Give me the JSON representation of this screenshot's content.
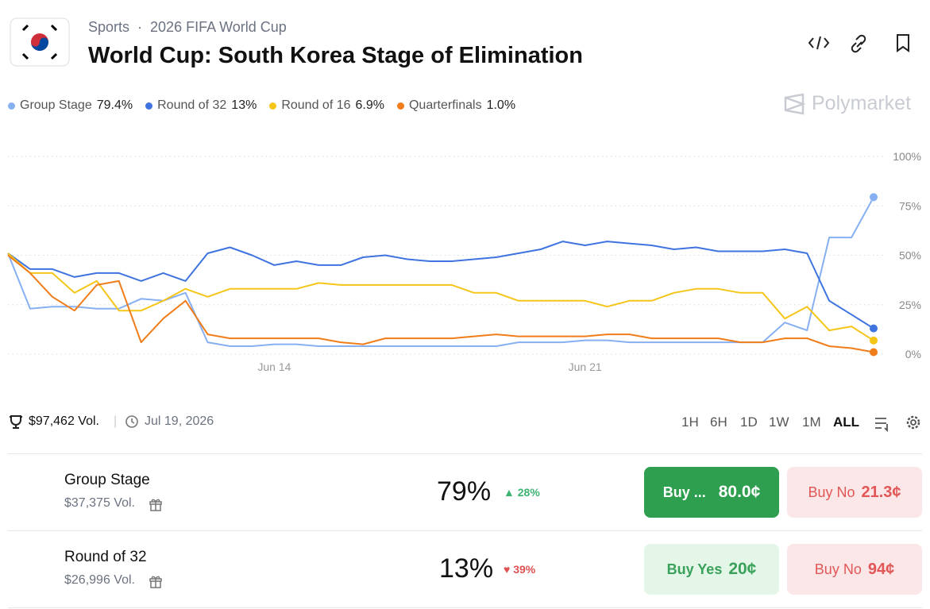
{
  "header": {
    "category": "Sports",
    "event": "2026 FIFA World Cup",
    "title": "World Cup: South Korea Stage of Elimination",
    "brand": "Polymarket"
  },
  "chart_data": {
    "type": "line",
    "categories": [
      null,
      null,
      null,
      null,
      null,
      null,
      null,
      null,
      null,
      null,
      null,
      null,
      "Jun 14",
      null,
      null,
      null,
      null,
      null,
      null,
      null,
      null,
      null,
      null,
      null,
      null,
      null,
      "Jun 21",
      null,
      null,
      null,
      null,
      null,
      null,
      null,
      null,
      null,
      null,
      null,
      null,
      null
    ],
    "series": [
      {
        "name": "Group Stage",
        "legend_value": "79.4%",
        "color": "#86b0f2",
        "values": [
          51,
          23,
          24,
          24,
          23,
          23,
          28,
          27,
          31,
          6,
          4,
          4,
          5,
          5,
          4,
          4,
          4,
          4,
          4,
          4,
          4,
          4,
          4,
          6,
          6,
          6,
          7,
          7,
          6,
          6,
          6,
          6,
          6,
          6,
          6,
          16,
          12,
          59,
          59,
          79.4
        ]
      },
      {
        "name": "Round of 32",
        "legend_value": "13%",
        "color": "#3f74e0",
        "values": [
          51,
          43,
          43,
          39,
          41,
          41,
          37,
          41,
          37,
          51,
          54,
          50,
          45,
          47,
          45,
          45,
          49,
          50,
          48,
          47,
          47,
          48,
          49,
          51,
          53,
          57,
          55,
          57,
          56,
          55,
          53,
          54,
          52,
          52,
          52,
          53,
          51,
          27,
          20,
          13
        ]
      },
      {
        "name": "Round of 16",
        "legend_value": "6.9%",
        "color": "#f5c518",
        "values": [
          51,
          41,
          41,
          31,
          37,
          22,
          22,
          27,
          33,
          29,
          33,
          33,
          33,
          33,
          36,
          35,
          35,
          35,
          35,
          35,
          35,
          31,
          31,
          27,
          27,
          27,
          27,
          24,
          27,
          27,
          31,
          33,
          33,
          31,
          31,
          18,
          24,
          12,
          14,
          6.9
        ]
      },
      {
        "name": "Quarterfinals",
        "legend_value": "1.0%",
        "color": "#f07d1a",
        "values": [
          50,
          41,
          29,
          22,
          35,
          37,
          6,
          18,
          27,
          10,
          8,
          8,
          8,
          8,
          8,
          6,
          5,
          8,
          8,
          8,
          8,
          9,
          10,
          9,
          9,
          9,
          9,
          10,
          10,
          8,
          8,
          8,
          8,
          6,
          6,
          8,
          8,
          4,
          3,
          1.0
        ]
      }
    ],
    "ylim": [
      0,
      100
    ],
    "yticks": [
      {
        "value": 0,
        "label": "0%"
      },
      {
        "value": 25,
        "label": "25%"
      },
      {
        "value": 50,
        "label": "50%"
      },
      {
        "value": 75,
        "label": "75%"
      },
      {
        "value": 100,
        "label": "100%"
      }
    ],
    "grid": true
  },
  "footer": {
    "volume": "$97,462 Vol.",
    "date": "Jul 19, 2026",
    "ranges": [
      "1H",
      "6H",
      "1D",
      "1W",
      "1M",
      "ALL"
    ]
  },
  "markets": [
    {
      "name": "Group Stage",
      "volume": "$37,375 Vol.",
      "chance": "79%",
      "change": "28%",
      "direction": "up",
      "yes_label": "Buy ...",
      "yes_price": "80.0¢",
      "no_label": "Buy No",
      "no_price": "21.3¢"
    },
    {
      "name": "Round of 32",
      "volume": "$26,996 Vol.",
      "chance": "13%",
      "change": "39%",
      "direction": "down",
      "yes_label": "Buy Yes",
      "yes_price": "20¢",
      "no_label": "Buy No",
      "no_price": "94¢"
    }
  ]
}
